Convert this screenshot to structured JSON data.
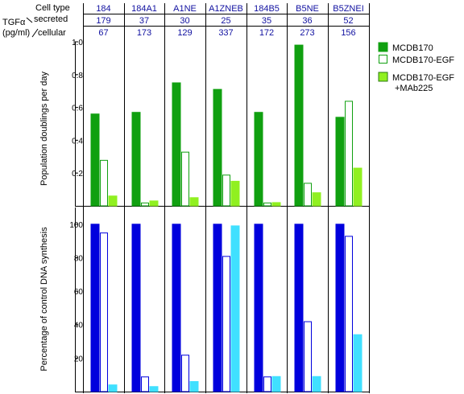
{
  "header": {
    "cell_type_label": "Cell type",
    "tgf_label": "TGFα",
    "units_label": "(pg/ml)",
    "secreted_label": "secreted",
    "cellular_label": "cellular",
    "cell_types": [
      "184",
      "184A1",
      "A1NE",
      "A1ZNEB",
      "184B5",
      "B5NE",
      "B5ZNEI"
    ],
    "secreted": [
      "179",
      "37",
      "30",
      "25",
      "35",
      "36",
      "52"
    ],
    "cellular": [
      "67",
      "173",
      "129",
      "337",
      "172",
      "273",
      "156"
    ]
  },
  "legend": [
    {
      "label": "MCDB170",
      "color": "#10a010",
      "fill": true
    },
    {
      "label": "MCDB170-EGF",
      "color": "#10a010",
      "fill": false
    },
    {
      "label": "MCDB170-EGF",
      "label2": "+MAb225",
      "color": "#90f020",
      "fill": true
    }
  ],
  "chart_data": [
    {
      "type": "bar",
      "ylabel": "Population doublings per day",
      "categories": [
        "184",
        "184A1",
        "A1NE",
        "A1ZNEB",
        "184B5",
        "B5NE",
        "B5ZNEI"
      ],
      "ylim": [
        0,
        1.0
      ],
      "yticks": [
        0.2,
        0.4,
        0.6,
        0.8,
        1.0
      ],
      "tick_labels": [
        "0.2",
        "0.4",
        "0.6",
        "0.8",
        "1.0"
      ],
      "series": [
        {
          "name": "MCDB170",
          "values": [
            0.56,
            0.57,
            0.75,
            0.71,
            0.57,
            0.98,
            0.54
          ],
          "color": "#10a010",
          "fill": true
        },
        {
          "name": "MCDB170-EGF",
          "values": [
            0.28,
            0.02,
            0.33,
            0.19,
            0.02,
            0.14,
            0.64
          ],
          "color": "#10a010",
          "fill": false
        },
        {
          "name": "MCDB170-EGF +MAb225",
          "values": [
            0.06,
            0.03,
            0.05,
            0.15,
            0.02,
            0.08,
            0.23
          ],
          "color": "#90f020",
          "fill": true
        }
      ]
    },
    {
      "type": "bar",
      "ylabel": "Percentage of control DNA synthesis",
      "categories": [
        "184",
        "184A1",
        "A1NE",
        "A1ZNEB",
        "184B5",
        "B5NE",
        "B5ZNEI"
      ],
      "ylim": [
        0,
        110
      ],
      "yticks": [
        20,
        40,
        60,
        80,
        100
      ],
      "tick_labels": [
        "20",
        "40",
        "60",
        "80",
        "100"
      ],
      "series": [
        {
          "name": "MCDB170",
          "values": [
            100,
            100,
            100,
            100,
            100,
            100,
            100
          ],
          "color": "#0000dd",
          "fill": true
        },
        {
          "name": "MCDB170-EGF",
          "values": [
            95,
            9,
            22,
            81,
            9,
            42,
            93
          ],
          "color": "#0000dd",
          "fill": false
        },
        {
          "name": "MCDB170-EGF +MAb225",
          "values": [
            4,
            3,
            6,
            99,
            9,
            9,
            34
          ],
          "color": "#40e0ff",
          "fill": true
        }
      ]
    }
  ]
}
